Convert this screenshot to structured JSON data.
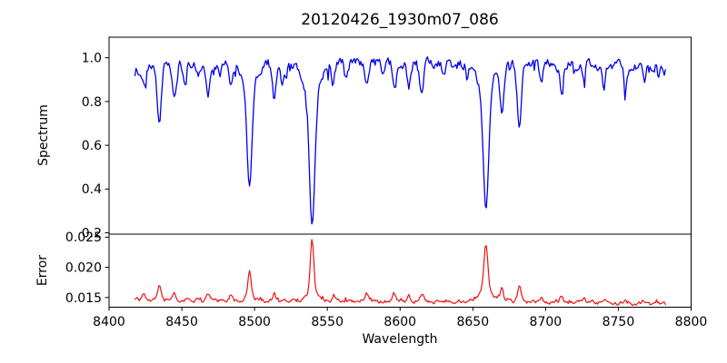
{
  "figure": {
    "title": "20120426_1930m07_086",
    "background": "#ffffff",
    "axis_color": "#000000"
  },
  "chart_data": [
    {
      "name": "spectrum",
      "type": "line",
      "color": "#0000ee",
      "line_width": 1.3,
      "ylabel": "Spectrum",
      "xlim": [
        8400,
        8800
      ],
      "ylim": [
        0.194,
        1.094
      ],
      "yticks": {
        "values": [
          0.2,
          0.4,
          0.6,
          0.8,
          1.0
        ],
        "labels": [
          "0.2",
          "0.4",
          "0.6",
          "0.8",
          "1.0"
        ]
      },
      "x_start": 8417.8,
      "x_end": 8782.3,
      "step": 0.75,
      "grid": false,
      "legend": "none",
      "continuum": [
        [
          8418,
          0.945
        ],
        [
          8440,
          0.962
        ],
        [
          8465,
          0.968
        ],
        [
          8495,
          0.972
        ],
        [
          8530,
          0.973
        ],
        [
          8570,
          0.975
        ],
        [
          8610,
          0.972
        ],
        [
          8650,
          0.973
        ],
        [
          8690,
          0.974
        ],
        [
          8725,
          0.968
        ],
        [
          8755,
          0.963
        ],
        [
          8783,
          0.96
        ]
      ],
      "absorption_lines": [
        {
          "c": 8424,
          "d": 0.09,
          "s": 1.1
        },
        {
          "c": 8434.5,
          "d": 0.28,
          "s": 1.4
        },
        {
          "c": 8445,
          "d": 0.16,
          "s": 1.2
        },
        {
          "c": 8452,
          "d": 0.07,
          "s": 1.0
        },
        {
          "c": 8461,
          "d": 0.06,
          "s": 1.0
        },
        {
          "c": 8468,
          "d": 0.15,
          "s": 1.3
        },
        {
          "c": 8476,
          "d": 0.06,
          "s": 1.0
        },
        {
          "c": 8483.5,
          "d": 0.1,
          "s": 1.1
        },
        {
          "c": 8496.5,
          "d": 0.48,
          "s": 1.7,
          "wd": 0.1,
          "ws": 5.0
        },
        {
          "c": 8513.5,
          "d": 0.16,
          "s": 1.3
        },
        {
          "c": 8519,
          "d": 0.09,
          "s": 1.0
        },
        {
          "c": 8539.5,
          "d": 0.63,
          "s": 1.9,
          "wd": 0.13,
          "ws": 6.0
        },
        {
          "c": 8554,
          "d": 0.08,
          "s": 1.0
        },
        {
          "c": 8563,
          "d": 0.06,
          "s": 1.0
        },
        {
          "c": 8577,
          "d": 0.11,
          "s": 1.2
        },
        {
          "c": 8588,
          "d": 0.07,
          "s": 1.0
        },
        {
          "c": 8596,
          "d": 0.1,
          "s": 1.1
        },
        {
          "c": 8606,
          "d": 0.12,
          "s": 1.1
        },
        {
          "c": 8615,
          "d": 0.14,
          "s": 1.2
        },
        {
          "c": 8630,
          "d": 0.07,
          "s": 1.0
        },
        {
          "c": 8646,
          "d": 0.08,
          "s": 1.0
        },
        {
          "c": 8659,
          "d": 0.575,
          "s": 1.8,
          "wd": 0.115,
          "ws": 5.5
        },
        {
          "c": 8670,
          "d": 0.21,
          "s": 1.3
        },
        {
          "c": 8682,
          "d": 0.3,
          "s": 1.5
        },
        {
          "c": 8697,
          "d": 0.1,
          "s": 1.1
        },
        {
          "c": 8711,
          "d": 0.12,
          "s": 1.2
        },
        {
          "c": 8726,
          "d": 0.07,
          "s": 1.0
        },
        {
          "c": 8740,
          "d": 0.1,
          "s": 1.1
        },
        {
          "c": 8755,
          "d": 0.1,
          "s": 1.1
        },
        {
          "c": 8768,
          "d": 0.07,
          "s": 1.0
        }
      ],
      "noise": {
        "seed": 20120426,
        "amp": 0.02,
        "spike_prob": 0.09,
        "spike_amp": 0.05
      }
    },
    {
      "name": "error",
      "type": "line",
      "color": "#ee1111",
      "line_width": 1.2,
      "ylabel": "Error",
      "xlabel": "Wavelength",
      "xlim": [
        8400,
        8800
      ],
      "ylim": [
        0.0134,
        0.0255
      ],
      "yticks": {
        "values": [
          0.015,
          0.02,
          0.025
        ],
        "labels": [
          "0.015",
          "0.020",
          "0.025"
        ]
      },
      "xticks": {
        "values": [
          8400,
          8450,
          8500,
          8550,
          8600,
          8650,
          8700,
          8750,
          8800
        ],
        "labels": [
          "8400",
          "8450",
          "8500",
          "8550",
          "8600",
          "8650",
          "8700",
          "8750",
          "8800"
        ]
      },
      "x_start": 8417.8,
      "x_end": 8782.3,
      "step": 0.75,
      "grid": false,
      "legend": "none",
      "baseline": [
        [
          8418,
          0.01465
        ],
        [
          8450,
          0.01455
        ],
        [
          8480,
          0.01445
        ],
        [
          8540,
          0.01445
        ],
        [
          8600,
          0.0144
        ],
        [
          8660,
          0.01435
        ],
        [
          8700,
          0.01428
        ],
        [
          8735,
          0.0142
        ],
        [
          8760,
          0.01408
        ],
        [
          8783,
          0.01395
        ]
      ],
      "peaks": [
        {
          "c": 8424,
          "h": 0.0007,
          "s": 1.0
        },
        {
          "c": 8434.5,
          "h": 0.0024,
          "s": 1.2
        },
        {
          "c": 8445,
          "h": 0.0013,
          "s": 1.0
        },
        {
          "c": 8468,
          "h": 0.0013,
          "s": 1.1
        },
        {
          "c": 8483.5,
          "h": 0.0008,
          "s": 1.0
        },
        {
          "c": 8496.5,
          "h": 0.0045,
          "s": 1.1,
          "bh": 0.0007,
          "bs": 3.0
        },
        {
          "c": 8513.5,
          "h": 0.0013,
          "s": 1.1
        },
        {
          "c": 8539.5,
          "h": 0.0085,
          "s": 1.2,
          "bh": 0.0015,
          "bs": 4.0
        },
        {
          "c": 8554,
          "h": 0.0007,
          "s": 1.0
        },
        {
          "c": 8577,
          "h": 0.0013,
          "s": 1.1
        },
        {
          "c": 8596,
          "h": 0.0013,
          "s": 1.1
        },
        {
          "c": 8606,
          "h": 0.0008,
          "s": 1.0
        },
        {
          "c": 8615,
          "h": 0.0011,
          "s": 1.1
        },
        {
          "c": 8659,
          "h": 0.0078,
          "s": 1.3,
          "bh": 0.002,
          "bs": 4.5
        },
        {
          "c": 8670,
          "h": 0.0019,
          "s": 1.1
        },
        {
          "c": 8682,
          "h": 0.0023,
          "s": 1.2
        },
        {
          "c": 8697,
          "h": 0.0008,
          "s": 1.0
        },
        {
          "c": 8711,
          "h": 0.0011,
          "s": 1.1
        },
        {
          "c": 8726,
          "h": 0.0006,
          "s": 1.0
        },
        {
          "c": 8740,
          "h": 0.0007,
          "s": 1.0
        },
        {
          "c": 8755,
          "h": 0.0006,
          "s": 1.0
        }
      ],
      "noise": {
        "seed": 19300786,
        "amp": 0.00028,
        "spike_prob": 0.07,
        "spike_amp": 0.0005
      }
    }
  ]
}
